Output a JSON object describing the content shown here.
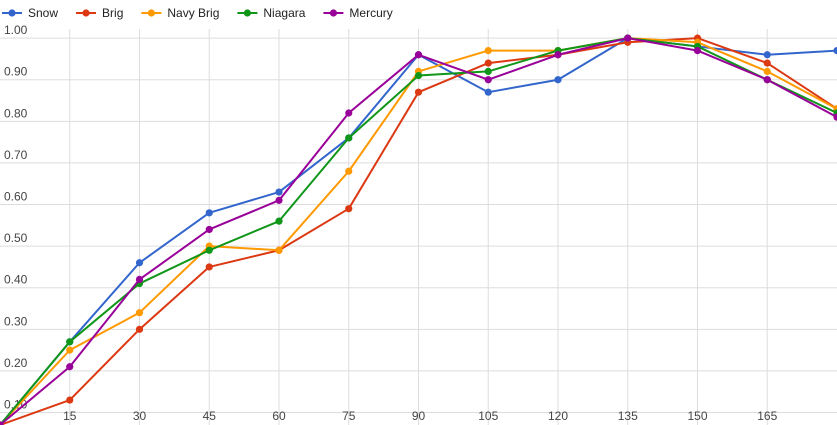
{
  "chart_data": {
    "type": "line",
    "title": "",
    "xlabel": "",
    "ylabel": "",
    "x": [
      0,
      15,
      30,
      45,
      60,
      75,
      90,
      105,
      120,
      135,
      150,
      165,
      180
    ],
    "xlim": [
      0,
      180
    ],
    "ylim": [
      0.07,
      1.07
    ],
    "x_ticks": [
      15,
      30,
      45,
      60,
      75,
      90,
      105,
      120,
      135,
      150,
      165
    ],
    "x_tick_labels": [
      "15",
      "30",
      "45",
      "60",
      "75",
      "90",
      "105",
      "120",
      "135",
      "150",
      "165"
    ],
    "y_ticks": [
      0.1,
      0.2,
      0.3,
      0.4,
      0.5,
      0.6,
      0.7,
      0.8,
      0.9,
      1.0
    ],
    "y_tick_labels": [
      "0.10",
      "0.20",
      "0.30",
      "0.40",
      "0.50",
      "0.60",
      "0.70",
      "0.80",
      "0.90",
      "1.00"
    ],
    "grid": true,
    "legend_position": "top-left",
    "series": [
      {
        "name": "Snow",
        "color": "#3366cc",
        "values": [
          0.07,
          0.27,
          0.46,
          0.58,
          0.63,
          0.76,
          0.96,
          0.87,
          0.9,
          1.0,
          0.98,
          0.96,
          0.97
        ]
      },
      {
        "name": "Brig",
        "color": "#dc3912",
        "values": [
          0.07,
          0.13,
          0.3,
          0.45,
          0.49,
          0.59,
          0.87,
          0.94,
          0.96,
          0.99,
          1.0,
          0.94,
          0.83
        ]
      },
      {
        "name": "Navy Brig",
        "color": "#ff9900",
        "values": [
          0.07,
          0.25,
          0.34,
          0.5,
          0.49,
          0.68,
          0.92,
          0.97,
          0.97,
          1.0,
          0.99,
          0.92,
          0.83
        ]
      },
      {
        "name": "Niagara",
        "color": "#109618",
        "values": [
          0.07,
          0.27,
          0.41,
          0.49,
          0.56,
          0.76,
          0.91,
          0.92,
          0.97,
          1.0,
          0.98,
          0.9,
          0.82
        ]
      },
      {
        "name": "Mercury",
        "color": "#990099",
        "values": [
          0.07,
          0.21,
          0.42,
          0.54,
          0.61,
          0.82,
          0.96,
          0.9,
          0.96,
          1.0,
          0.97,
          0.9,
          0.81
        ]
      }
    ]
  }
}
